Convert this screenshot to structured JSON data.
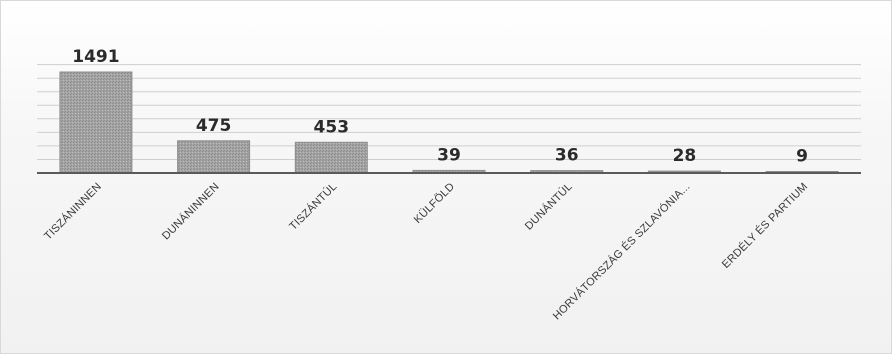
{
  "chart_data": {
    "type": "bar",
    "title": "",
    "xlabel": "",
    "ylabel": "",
    "categories": [
      "TISZÁNINNEN",
      "DUNÁNINNEN",
      "TISZÁNTÚL",
      "KÜLFÖLD",
      "DUNÁNTÚL",
      "HORVÁTORSZÁG ÉS SZLAVÓNIA...",
      "ERDÉLY ÉS PARTIUM"
    ],
    "values": [
      1491,
      475,
      453,
      39,
      36,
      28,
      9
    ],
    "data_labels": [
      "1491",
      "475",
      "453",
      "39",
      "36",
      "28",
      "9"
    ],
    "ylim": [
      0,
      1600
    ],
    "grid": true,
    "legend": "none",
    "colors": {
      "bar_fill": "#9a9a9a",
      "bar_stroke": "#8d8d8d",
      "grid": "#cfcfcf",
      "axis": "#5a5a5a",
      "text": "#2b2b2b"
    }
  }
}
